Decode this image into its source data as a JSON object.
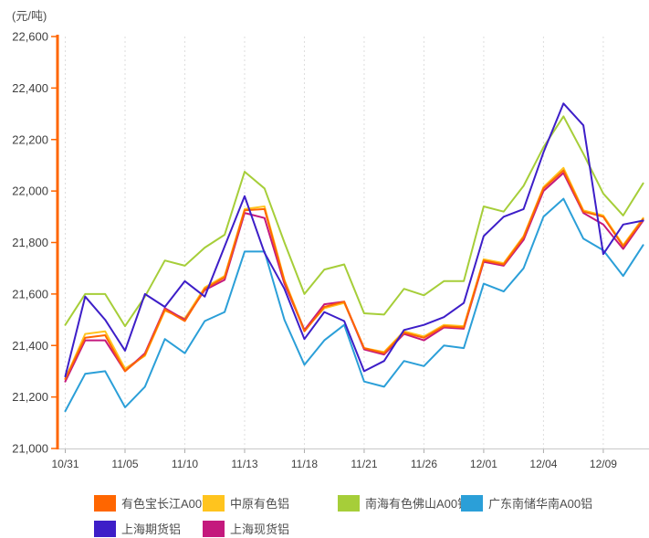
{
  "unit_label": "(元/吨)",
  "colors": {
    "y_axis": "#FF6600",
    "x_axis_line": "#C8C8C8",
    "x_tick": "#AAAAAA",
    "gridline": "#DDDDDD",
    "tick_label": "#404040",
    "legend_text": "#4D4D4D",
    "background": "#FFFFFF"
  },
  "chart_data": {
    "type": "line",
    "title": "(元/吨)",
    "xlabel": "",
    "ylabel": "元/吨",
    "ylim": [
      21000,
      22600
    ],
    "y_tick_values": [
      21000,
      21200,
      21400,
      21600,
      21800,
      22000,
      22200,
      22400,
      22600
    ],
    "y_tick_labels": [
      "21,000",
      "21,200",
      "21,400",
      "21,600",
      "21,800",
      "22,000",
      "22,200",
      "22,400",
      "22,600"
    ],
    "x_point_count": 30,
    "x_tick_labels": [
      {
        "index": 0,
        "label": "10/31"
      },
      {
        "index": 3,
        "label": "11/05"
      },
      {
        "index": 6,
        "label": "11/10"
      },
      {
        "index": 9,
        "label": "11/13"
      },
      {
        "index": 12,
        "label": "11/18"
      },
      {
        "index": 15,
        "label": "11/21"
      },
      {
        "index": 18,
        "label": "11/26"
      },
      {
        "index": 21,
        "label": "12/01"
      },
      {
        "index": 24,
        "label": "12/04"
      },
      {
        "index": 27,
        "label": "12/09"
      }
    ],
    "grid": "vertical-dashed",
    "legend_position": "bottom",
    "series": [
      {
        "name": "有色宝长江A00铝",
        "color": "#FF6600",
        "values": [
          21270,
          21430,
          21440,
          21300,
          21365,
          21540,
          21495,
          21620,
          21665,
          21925,
          21930,
          21650,
          21455,
          21550,
          21570,
          21390,
          21370,
          21450,
          21430,
          21475,
          21470,
          21730,
          21715,
          21820,
          22010,
          22080,
          21920,
          21900,
          21785,
          21890
        ]
      },
      {
        "name": "中原有色铝",
        "color": "#FFC41E",
        "values": [
          21270,
          21445,
          21455,
          21310,
          21360,
          21535,
          21505,
          21625,
          21670,
          21930,
          21940,
          21655,
          21460,
          21545,
          21565,
          21390,
          21375,
          21455,
          21435,
          21480,
          21475,
          21735,
          21720,
          21825,
          22015,
          22090,
          21925,
          21905,
          21790,
          21895
        ]
      },
      {
        "name": "南海有色佛山A00铝",
        "color": "#A6CE39",
        "values": [
          21480,
          21600,
          21600,
          21475,
          21590,
          21730,
          21710,
          21780,
          21830,
          22075,
          22010,
          21800,
          21600,
          21695,
          21715,
          21525,
          21520,
          21620,
          21595,
          21650,
          21650,
          21940,
          21920,
          22020,
          22170,
          22290,
          22145,
          21990,
          21905,
          22030
        ]
      },
      {
        "name": "广东南储华南A00铝",
        "color": "#2B9FD8",
        "values": [
          21145,
          21290,
          21300,
          21160,
          21240,
          21425,
          21370,
          21495,
          21530,
          21765,
          21765,
          21500,
          21325,
          21420,
          21480,
          21260,
          21240,
          21340,
          21320,
          21400,
          21390,
          21640,
          21610,
          21700,
          21900,
          21970,
          21815,
          21770,
          21670,
          21790
        ]
      },
      {
        "name": "上海期货铝",
        "color": "#3D1EC8",
        "values": [
          21280,
          21590,
          21500,
          21380,
          21600,
          21550,
          21650,
          21590,
          21785,
          21980,
          21760,
          21620,
          21425,
          21530,
          21495,
          21300,
          21340,
          21460,
          21480,
          21510,
          21565,
          21825,
          21900,
          21930,
          22150,
          22340,
          22255,
          21755,
          21870,
          21885
        ]
      },
      {
        "name": "上海现货铝",
        "color": "#C4197D",
        "values": [
          21260,
          21420,
          21420,
          21300,
          21370,
          21545,
          21500,
          21615,
          21655,
          21915,
          21895,
          21640,
          21460,
          21560,
          21570,
          21385,
          21365,
          21445,
          21420,
          21470,
          21465,
          21725,
          21710,
          21810,
          22000,
          22070,
          21915,
          21870,
          21775,
          21885
        ]
      }
    ]
  },
  "legend": {
    "row1": [
      "有色宝长江A00铝",
      "中原有色铝",
      "南海有色佛山A00铝",
      "广东南储华南A00铝"
    ],
    "row2": [
      "上海期货铝",
      "上海现货铝"
    ]
  }
}
